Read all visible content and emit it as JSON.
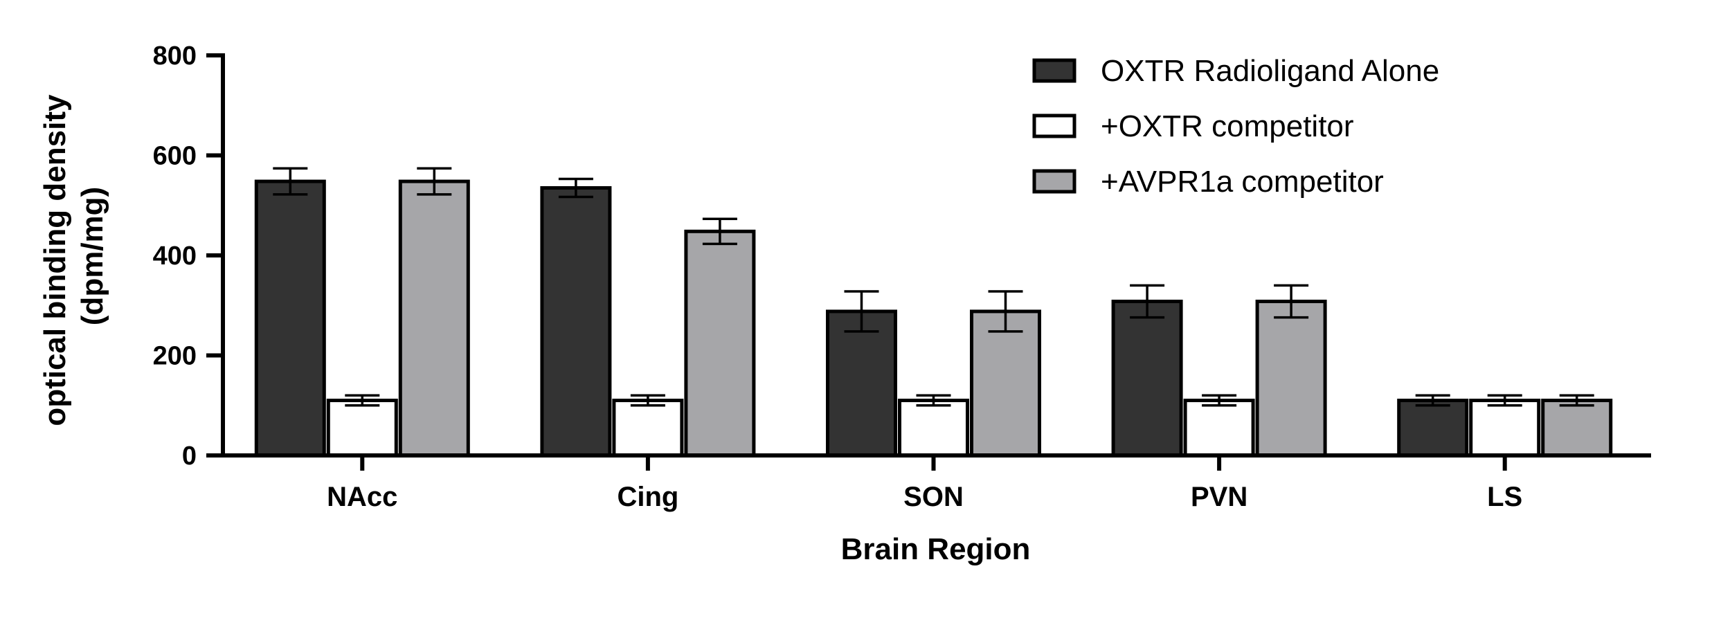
{
  "chart_data": {
    "type": "bar",
    "title": "",
    "xlabel": "Brain Region",
    "ylabel_lines": [
      "optical binding density",
      "(dpm/mg)"
    ],
    "ylim": [
      0,
      800
    ],
    "yticks": [
      0,
      200,
      400,
      600,
      800
    ],
    "categories": [
      "NAcc",
      "Cing",
      "SON",
      "PVN",
      "LS"
    ],
    "legend_position": "top-right",
    "grid": false,
    "series": [
      {
        "name": "OXTR Radioligand Alone",
        "color": "#333333",
        "values": [
          548,
          535,
          288,
          308,
          110
        ],
        "errors": [
          26,
          18,
          40,
          32,
          10
        ]
      },
      {
        "name": "+OXTR competitor",
        "color": "#ffffff",
        "values": [
          110,
          110,
          110,
          110,
          110
        ],
        "errors": [
          10,
          10,
          10,
          10,
          10
        ]
      },
      {
        "name": "+AVPR1a competitor",
        "color": "#a6a6a9",
        "values": [
          548,
          448,
          288,
          308,
          110
        ],
        "errors": [
          26,
          25,
          40,
          32,
          10
        ]
      }
    ]
  }
}
